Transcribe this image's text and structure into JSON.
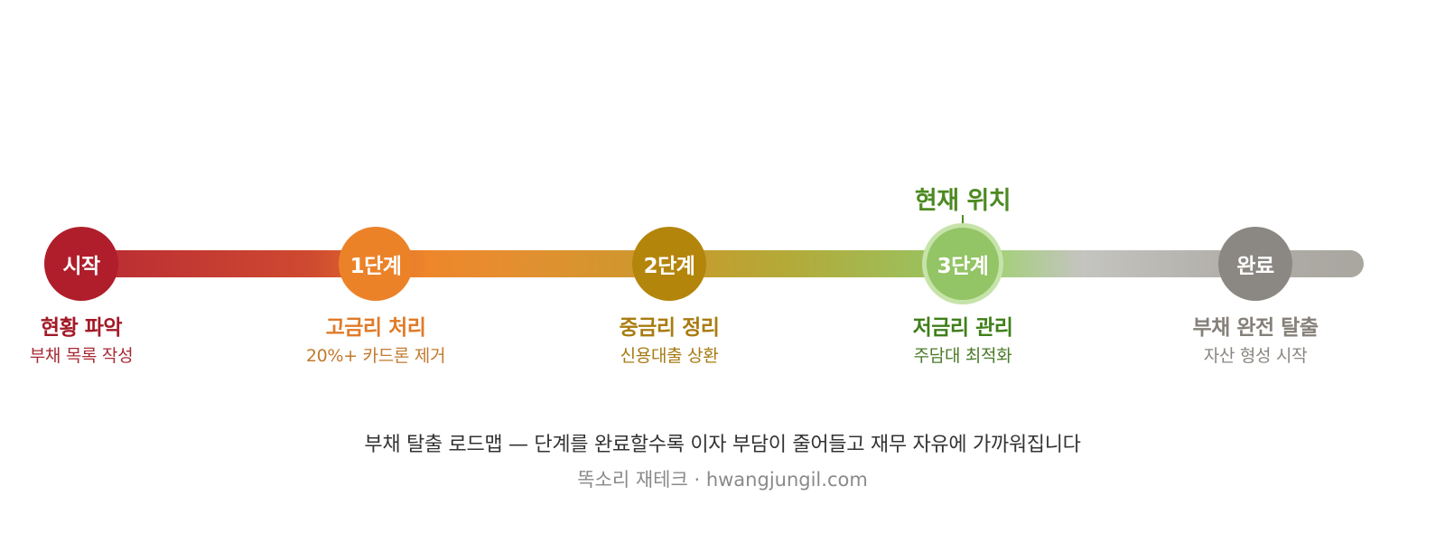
{
  "current_marker": {
    "label": "현재 위치",
    "color": "#4d8a21"
  },
  "stages": [
    {
      "node_label": "시작",
      "title": "현황 파악",
      "description": "부채 목록 작성",
      "node_color": "#b01d2b",
      "title_color": "#a31927",
      "desc_color": "#a82b35",
      "current": false
    },
    {
      "node_label": "1단계",
      "title": "고금리 처리",
      "description": "20%+ 카드론 제거",
      "node_color": "#ec8228",
      "title_color": "#e07a27",
      "desc_color": "#c17a2e",
      "current": false
    },
    {
      "node_label": "2단계",
      "title": "중금리 정리",
      "description": "신용대출 상환",
      "node_color": "#b3850b",
      "title_color": "#a87c10",
      "desc_color": "#a67a12",
      "current": false
    },
    {
      "node_label": "3단계",
      "title": "저금리 관리",
      "description": "주담대 최적화",
      "node_color": "#93c465",
      "title_color": "#3f7f1a",
      "desc_color": "#4a7a26",
      "current": true
    },
    {
      "node_label": "완료",
      "title": "부채 완전 탈출",
      "description": "자산 형성 시작",
      "node_color": "#8b8782",
      "title_color": "#858079",
      "desc_color": "#8a8680",
      "current": false
    }
  ],
  "caption": "부채 탈출 로드맵 — 단계를 완료할수록 이자 부담이 줄어들고 재무 자유에 가까워집니다",
  "credit": "똑소리 재테크 · hwangjungil.com"
}
